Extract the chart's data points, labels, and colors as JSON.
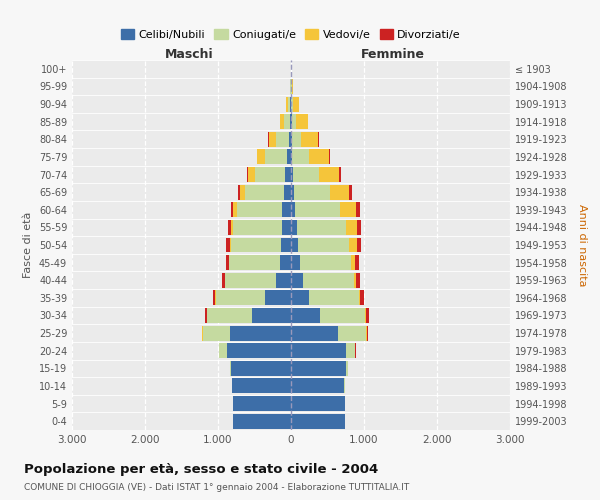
{
  "age_groups": [
    "0-4",
    "5-9",
    "10-14",
    "15-19",
    "20-24",
    "25-29",
    "30-34",
    "35-39",
    "40-44",
    "45-49",
    "50-54",
    "55-59",
    "60-64",
    "65-69",
    "70-74",
    "75-79",
    "80-84",
    "85-89",
    "90-94",
    "95-99",
    "100+"
  ],
  "birth_years": [
    "1999-2003",
    "1994-1998",
    "1989-1993",
    "1984-1988",
    "1979-1983",
    "1974-1978",
    "1969-1973",
    "1964-1968",
    "1959-1963",
    "1954-1958",
    "1949-1953",
    "1944-1948",
    "1939-1943",
    "1934-1938",
    "1929-1933",
    "1924-1928",
    "1919-1923",
    "1914-1918",
    "1909-1913",
    "1904-1908",
    "≤ 1903"
  ],
  "males": {
    "celibe": [
      790,
      790,
      810,
      820,
      870,
      830,
      530,
      350,
      200,
      155,
      140,
      130,
      120,
      100,
      80,
      50,
      25,
      15,
      8,
      3,
      2
    ],
    "coniugato": [
      0,
      0,
      5,
      20,
      120,
      380,
      620,
      680,
      700,
      690,
      680,
      660,
      620,
      530,
      420,
      300,
      180,
      80,
      30,
      5,
      0
    ],
    "vedovo": [
      0,
      0,
      0,
      0,
      0,
      5,
      5,
      5,
      5,
      10,
      20,
      30,
      50,
      70,
      90,
      110,
      100,
      60,
      25,
      5,
      1
    ],
    "divorziato": [
      0,
      0,
      0,
      0,
      3,
      8,
      20,
      30,
      35,
      40,
      45,
      40,
      35,
      25,
      15,
      8,
      5,
      2,
      0,
      0,
      0
    ]
  },
  "females": {
    "nubile": [
      740,
      740,
      730,
      760,
      750,
      650,
      400,
      250,
      160,
      120,
      100,
      80,
      55,
      40,
      30,
      20,
      12,
      8,
      5,
      3,
      2
    ],
    "coniugata": [
      0,
      0,
      5,
      25,
      130,
      380,
      620,
      680,
      700,
      700,
      700,
      680,
      620,
      500,
      350,
      220,
      130,
      60,
      20,
      5,
      0
    ],
    "vedova": [
      0,
      0,
      0,
      0,
      3,
      8,
      10,
      20,
      30,
      60,
      100,
      150,
      220,
      260,
      280,
      280,
      230,
      160,
      80,
      20,
      1
    ],
    "divorziata": [
      0,
      0,
      0,
      2,
      5,
      15,
      35,
      55,
      60,
      50,
      55,
      50,
      45,
      30,
      20,
      15,
      8,
      5,
      2,
      0,
      0
    ]
  },
  "colors": {
    "celibe": "#3d6ea8",
    "coniugato": "#c5daa0",
    "vedovo": "#f5c53a",
    "divorziato": "#cc2222"
  },
  "xlim": 3000,
  "xtick_vals": [
    -3000,
    -2000,
    -1000,
    0,
    1000,
    2000,
    3000
  ],
  "xtick_labels": [
    "3.000",
    "2.000",
    "1.000",
    "0",
    "1.000",
    "2.000",
    "3.000"
  ],
  "title": "Popolazione per età, sesso e stato civile - 2004",
  "subtitle": "COMUNE DI CHIOGGIA (VE) - Dati ISTAT 1° gennaio 2004 - Elaborazione TUTTITALIA.IT",
  "ylabel_left": "Fasce di età",
  "ylabel_right": "Anni di nascita",
  "xlabel_left": "Maschi",
  "xlabel_right": "Femmine",
  "legend_labels": [
    "Celibi/Nubili",
    "Coniugati/e",
    "Vedovi/e",
    "Divorziati/e"
  ],
  "bg_color": "#f7f7f7",
  "plot_bg": "#ebebeb"
}
